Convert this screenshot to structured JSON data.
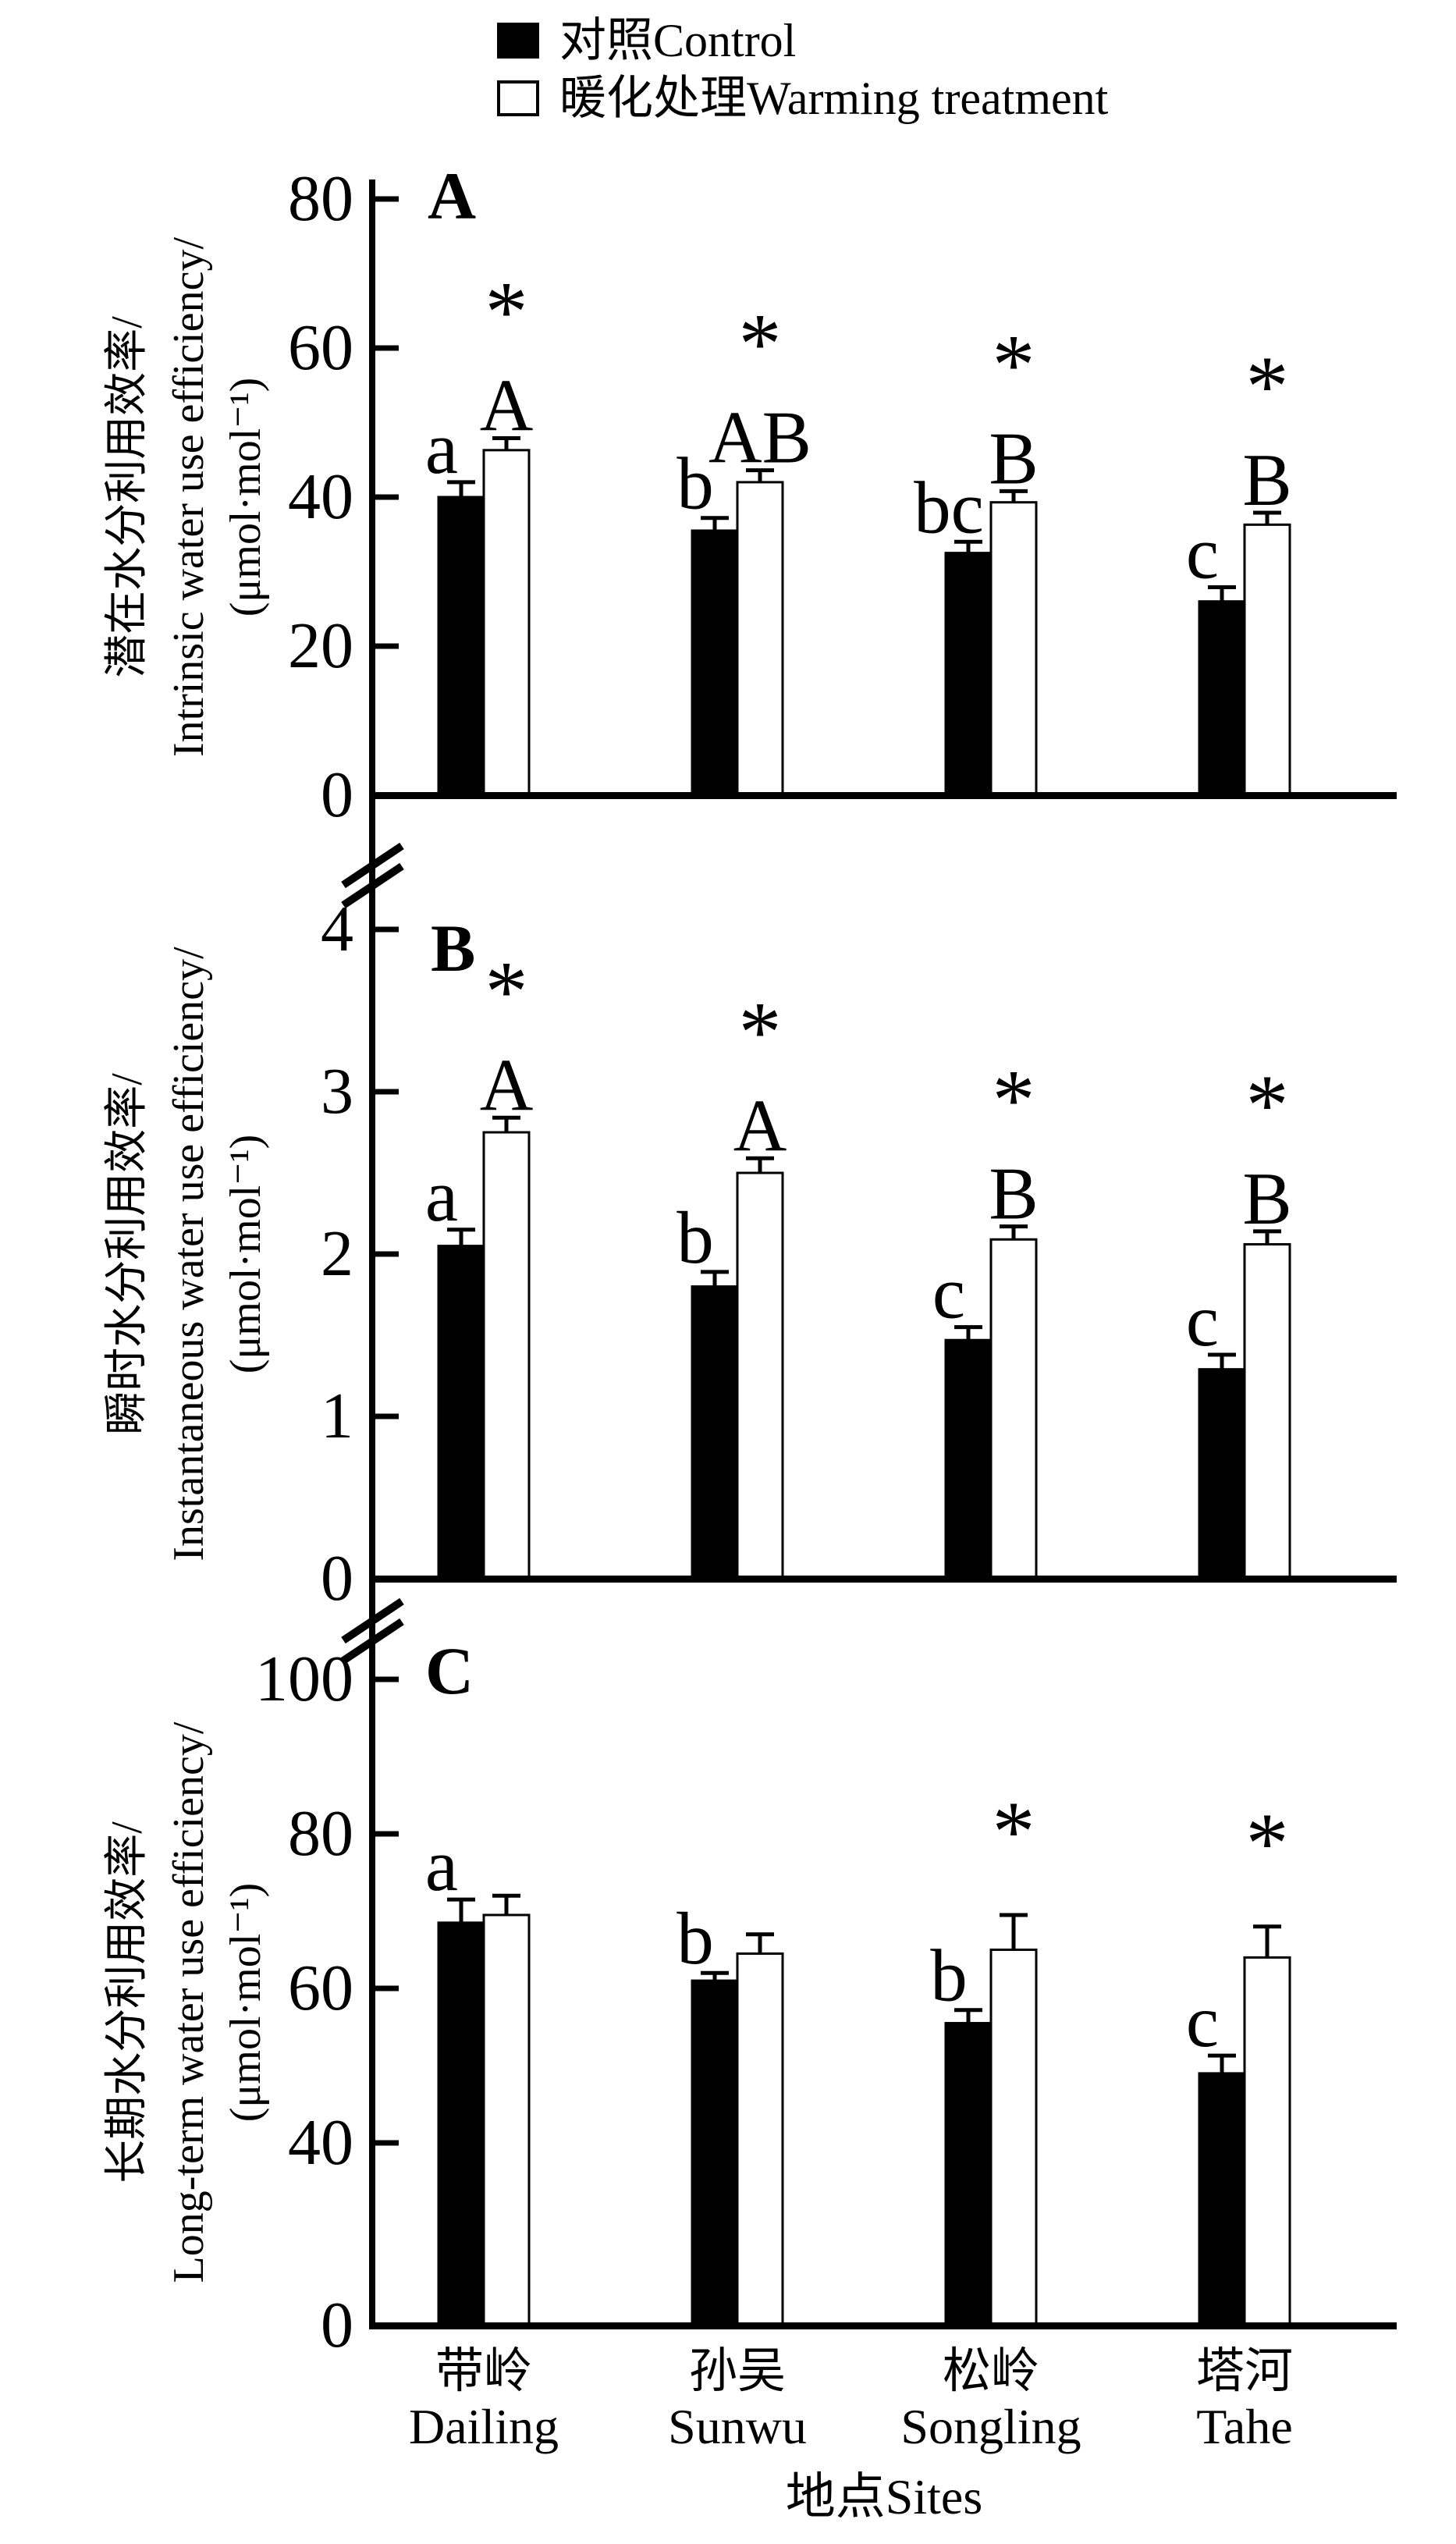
{
  "legend": {
    "items": [
      {
        "label": "对照Control",
        "swatch": "black"
      },
      {
        "label": "暖化处理Warming treatment",
        "swatch": "white"
      }
    ]
  },
  "x_axis": {
    "title": "地点Sites",
    "categories": [
      {
        "zh": "带岭",
        "en": "Dailing"
      },
      {
        "zh": "孙吴",
        "en": "Sunwu"
      },
      {
        "zh": "松岭",
        "en": "Songling"
      },
      {
        "zh": "塔河",
        "en": "Tahe"
      }
    ]
  },
  "symbols": {
    "star": "*"
  },
  "colors": {
    "control_fill": "#000000",
    "warming_fill": "#ffffff",
    "stroke": "#000000",
    "background": "#ffffff"
  },
  "chart_data": [
    {
      "type": "bar",
      "panel_label": "A",
      "ylabel_zh": "潜在水分利用效率/",
      "ylabel_en": "Intrinsic water use efficiency/",
      "ylabel_units": "(μmol·mol⁻¹)",
      "ylim": [
        0,
        80
      ],
      "yticks": [
        80,
        60,
        40,
        20,
        0
      ],
      "axis_break_top": false,
      "categories": [
        "Dailing",
        "Sunwu",
        "Songling",
        "Tahe"
      ],
      "series": [
        {
          "name": "对照Control",
          "values": [
            40,
            35.5,
            32.5,
            26
          ],
          "errors": [
            2,
            1.7,
            1.5,
            1.9
          ],
          "letters": [
            "a",
            "b",
            "bc",
            "c"
          ],
          "stars": [
            false,
            false,
            false,
            false
          ]
        },
        {
          "name": "暖化处理Warming treatment",
          "values": [
            46.3,
            42,
            39.3,
            36.3
          ],
          "errors": [
            1.6,
            1.6,
            1.5,
            1.6
          ],
          "letters": [
            "A",
            "AB",
            "B",
            "B"
          ],
          "stars": [
            true,
            true,
            true,
            true
          ]
        }
      ]
    },
    {
      "type": "bar",
      "panel_label": "B",
      "ylabel_zh": "瞬时水分利用效率/",
      "ylabel_en": "Instantaneous water use efficiency/",
      "ylabel_units": "(μmol·mol⁻¹)",
      "ylim": [
        0,
        4
      ],
      "yticks": [
        4,
        3,
        2,
        1,
        0
      ],
      "axis_break_top": true,
      "categories": [
        "Dailing",
        "Sunwu",
        "Songling",
        "Tahe"
      ],
      "series": [
        {
          "name": "对照Control",
          "values": [
            2.05,
            1.8,
            1.47,
            1.29
          ],
          "errors": [
            0.1,
            0.09,
            0.08,
            0.09
          ],
          "letters": [
            "a",
            "b",
            "c",
            "c"
          ],
          "stars": [
            false,
            false,
            false,
            false
          ]
        },
        {
          "name": "暖化处理Warming treatment",
          "values": [
            2.75,
            2.5,
            2.09,
            2.06
          ],
          "errors": [
            0.09,
            0.09,
            0.08,
            0.08
          ],
          "letters": [
            "A",
            "A",
            "B",
            "B"
          ],
          "stars": [
            true,
            true,
            true,
            true
          ]
        }
      ]
    },
    {
      "type": "bar",
      "panel_label": "C",
      "ylabel_zh": "长期水分利用效率/",
      "ylabel_en": "Long-term water use efficiency/",
      "ylabel_units": "(μmol·mol⁻¹)",
      "ylim": [
        0,
        100
      ],
      "yticks": [
        100,
        80,
        60,
        40,
        0
      ],
      "axis_break_top": true,
      "axis_break_bottom_range": [
        0,
        40
      ],
      "categories": [
        "Dailing",
        "Sunwu",
        "Songling",
        "Tahe"
      ],
      "series": [
        {
          "name": "对照Control",
          "values": [
            68.5,
            61,
            55.5,
            49
          ],
          "errors": [
            3,
            1,
            1.7,
            2.3
          ],
          "letters": [
            "a",
            "b",
            "b",
            "c"
          ],
          "stars": [
            false,
            false,
            false,
            false
          ]
        },
        {
          "name": "暖化处理Warming treatment",
          "values": [
            69.5,
            64.5,
            65,
            64
          ],
          "errors": [
            2.5,
            2.5,
            4.5,
            4
          ],
          "letters": [
            "",
            "",
            "",
            ""
          ],
          "stars": [
            false,
            false,
            true,
            true
          ]
        }
      ]
    }
  ]
}
